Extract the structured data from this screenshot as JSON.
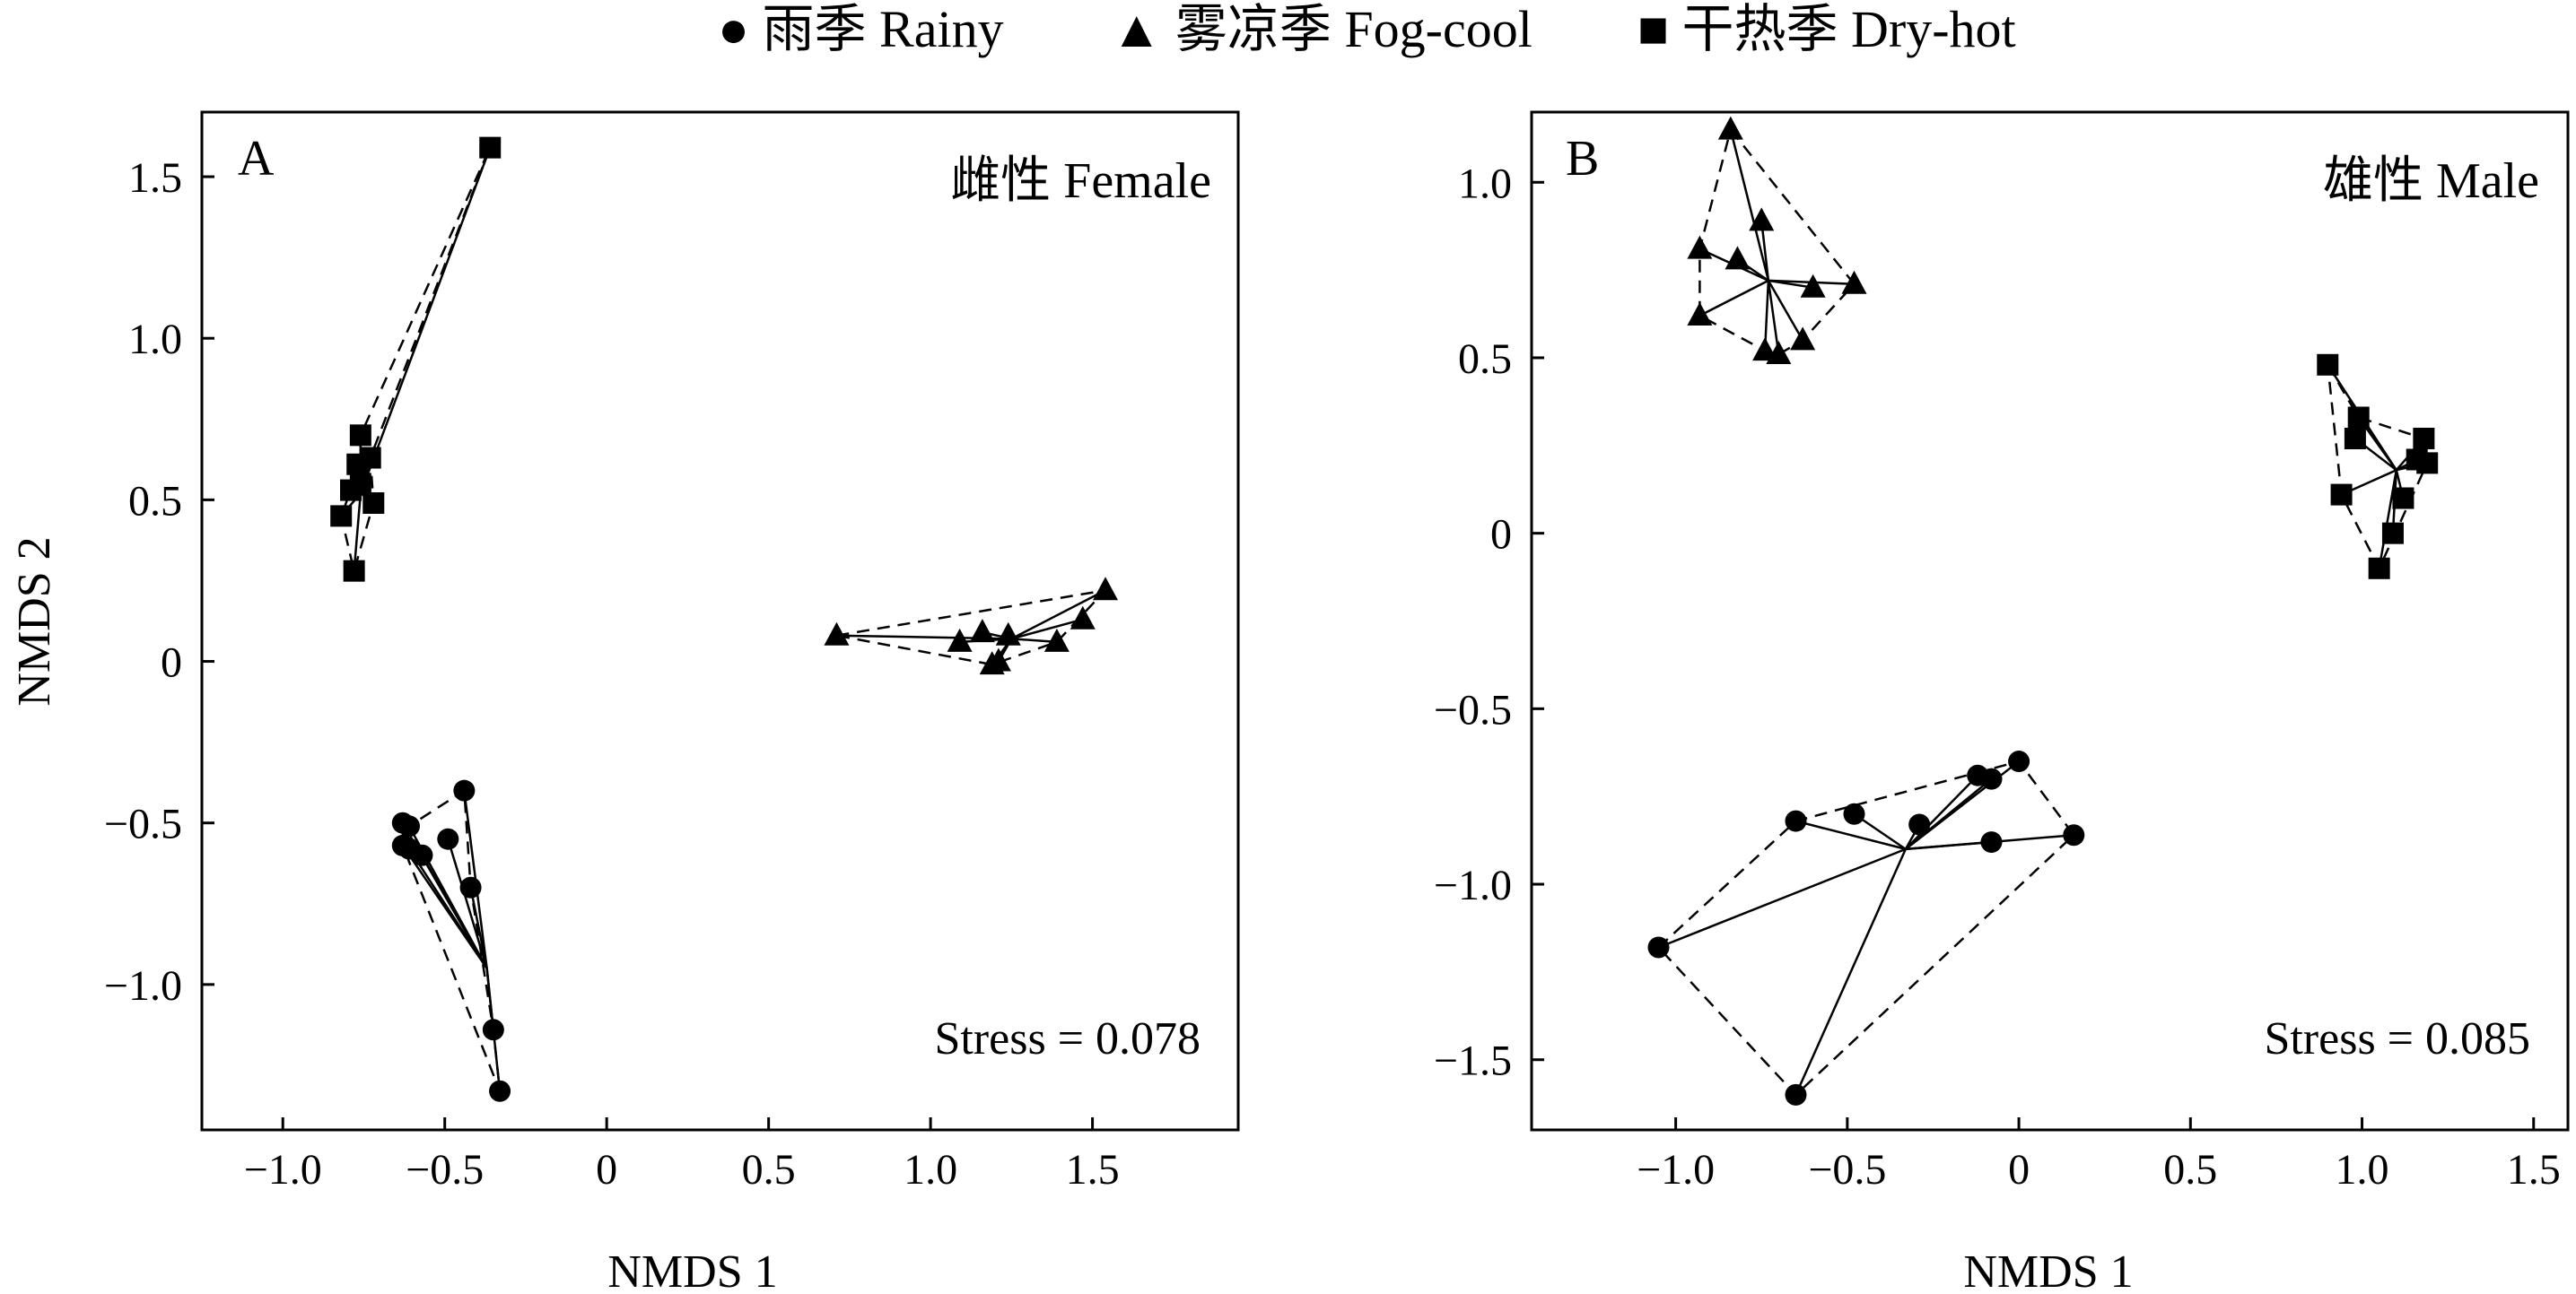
{
  "legend": {
    "items": [
      {
        "marker": "circle",
        "label": "● 雨季 Rainy"
      },
      {
        "marker": "triangle",
        "label": "▲ 雾凉季 Fog-cool"
      },
      {
        "marker": "square",
        "label": "■ 干热季 Dry-hot"
      }
    ]
  },
  "chart_data": [
    {
      "type": "scatter",
      "panel": "A",
      "title": "雌性 Female",
      "xlabel": "NMDS 1",
      "ylabel": "NMDS 2",
      "xlim": [
        -1.25,
        1.95
      ],
      "ylim": [
        -1.45,
        1.7
      ],
      "xticks": [
        -1.0,
        -0.5,
        0,
        0.5,
        1.0,
        1.5
      ],
      "xtick_labels": [
        "−1.0",
        "−0.5",
        "0",
        "0.5",
        "1.0",
        "1.5"
      ],
      "yticks": [
        -1.0,
        -0.5,
        0,
        0.5,
        1.0,
        1.5
      ],
      "ytick_labels": [
        "−1.0",
        "−0.5",
        "0",
        "0.5",
        "1.0",
        "1.5"
      ],
      "stress": "Stress = 0.078",
      "series": [
        {
          "season": "Rainy",
          "marker": "circle",
          "centroid": [
            -0.37,
            -0.95
          ],
          "points": [
            [
              -0.63,
              -0.5
            ],
            [
              -0.61,
              -0.51
            ],
            [
              -0.63,
              -0.57
            ],
            [
              -0.61,
              -0.58
            ],
            [
              -0.57,
              -0.6
            ],
            [
              -0.49,
              -0.55
            ],
            [
              -0.44,
              -0.4
            ],
            [
              -0.42,
              -0.7
            ],
            [
              -0.35,
              -1.14
            ],
            [
              -0.33,
              -1.33
            ]
          ],
          "hull": [
            [
              -0.63,
              -0.5
            ],
            [
              -0.61,
              -0.51
            ],
            [
              -0.44,
              -0.4
            ],
            [
              -0.42,
              -0.7
            ],
            [
              -0.35,
              -1.14
            ],
            [
              -0.33,
              -1.33
            ],
            [
              -0.63,
              -0.57
            ]
          ]
        },
        {
          "season": "Fog-cool",
          "marker": "triangle",
          "centroid": [
            1.25,
            0.07
          ],
          "points": [
            [
              0.71,
              0.08
            ],
            [
              1.09,
              0.06
            ],
            [
              1.16,
              0.09
            ],
            [
              1.19,
              -0.01
            ],
            [
              1.21,
              0.0
            ],
            [
              1.24,
              0.08
            ],
            [
              1.39,
              0.06
            ],
            [
              1.47,
              0.13
            ],
            [
              1.54,
              0.22
            ]
          ],
          "hull": [
            [
              0.71,
              0.08
            ],
            [
              1.54,
              0.22
            ],
            [
              1.39,
              0.06
            ],
            [
              1.19,
              -0.01
            ]
          ]
        },
        {
          "season": "Dry-hot",
          "marker": "square",
          "centroid": [
            -0.76,
            0.52
          ],
          "points": [
            [
              -0.36,
              1.59
            ],
            [
              -0.76,
              0.7
            ],
            [
              -0.77,
              0.61
            ],
            [
              -0.73,
              0.63
            ],
            [
              -0.79,
              0.53
            ],
            [
              -0.76,
              0.55
            ],
            [
              -0.72,
              0.49
            ],
            [
              -0.82,
              0.45
            ],
            [
              -0.78,
              0.28
            ]
          ],
          "hull": [
            [
              -0.36,
              1.59
            ],
            [
              -0.73,
              0.63
            ],
            [
              -0.72,
              0.49
            ],
            [
              -0.78,
              0.28
            ],
            [
              -0.82,
              0.45
            ],
            [
              -0.79,
              0.53
            ],
            [
              -0.77,
              0.61
            ],
            [
              -0.76,
              0.7
            ]
          ]
        }
      ]
    },
    {
      "type": "scatter",
      "panel": "B",
      "title": "雄性 Male",
      "xlabel": "NMDS 1",
      "ylabel": "",
      "xlim": [
        -1.42,
        1.6
      ],
      "ylim": [
        -1.7,
        1.2
      ],
      "xticks": [
        -1.0,
        -0.5,
        0,
        0.5,
        1.0,
        1.5
      ],
      "xtick_labels": [
        "−1.0",
        "−0.5",
        "0",
        "0.5",
        "1.0",
        "1.5"
      ],
      "yticks": [
        -1.5,
        -1.0,
        -0.5,
        0,
        0.5,
        1.0
      ],
      "ytick_labels": [
        "−1.5",
        "−1.0",
        "−0.5",
        "0",
        "0.5",
        "1.0"
      ],
      "stress": "Stress = 0.085",
      "series": [
        {
          "season": "Rainy",
          "marker": "circle",
          "centroid": [
            -0.33,
            -0.9
          ],
          "points": [
            [
              -1.05,
              -1.18
            ],
            [
              -0.65,
              -0.82
            ],
            [
              -0.65,
              -1.6
            ],
            [
              -0.48,
              -0.8
            ],
            [
              -0.29,
              -0.83
            ],
            [
              -0.12,
              -0.69
            ],
            [
              -0.08,
              -0.7
            ],
            [
              -0.08,
              -0.88
            ],
            [
              0.0,
              -0.65
            ],
            [
              0.16,
              -0.86
            ]
          ],
          "hull": [
            [
              -1.05,
              -1.18
            ],
            [
              -0.65,
              -0.82
            ],
            [
              0.0,
              -0.65
            ],
            [
              0.16,
              -0.86
            ],
            [
              -0.65,
              -1.6
            ]
          ]
        },
        {
          "season": "Fog-cool",
          "marker": "triangle",
          "centroid": [
            -0.73,
            0.72
          ],
          "points": [
            [
              -0.84,
              1.15
            ],
            [
              -0.93,
              0.81
            ],
            [
              -0.82,
              0.78
            ],
            [
              -0.75,
              0.89
            ],
            [
              -0.93,
              0.62
            ],
            [
              -0.6,
              0.7
            ],
            [
              -0.48,
              0.71
            ],
            [
              -0.74,
              0.52
            ],
            [
              -0.7,
              0.51
            ],
            [
              -0.63,
              0.55
            ]
          ],
          "hull": [
            [
              -0.84,
              1.15
            ],
            [
              -0.48,
              0.71
            ],
            [
              -0.63,
              0.55
            ],
            [
              -0.7,
              0.51
            ],
            [
              -0.74,
              0.52
            ],
            [
              -0.93,
              0.62
            ],
            [
              -0.93,
              0.81
            ]
          ]
        },
        {
          "season": "Dry-hot",
          "marker": "square",
          "centroid": [
            1.1,
            0.18
          ],
          "points": [
            [
              0.9,
              0.48
            ],
            [
              0.98,
              0.27
            ],
            [
              0.99,
              0.33
            ],
            [
              1.18,
              0.27
            ],
            [
              1.16,
              0.21
            ],
            [
              1.19,
              0.2
            ],
            [
              1.12,
              0.1
            ],
            [
              0.94,
              0.11
            ],
            [
              1.09,
              0.0
            ],
            [
              1.05,
              -0.1
            ]
          ],
          "hull": [
            [
              0.9,
              0.48
            ],
            [
              0.99,
              0.33
            ],
            [
              1.18,
              0.27
            ],
            [
              1.19,
              0.2
            ],
            [
              1.05,
              -0.1
            ],
            [
              0.94,
              0.11
            ]
          ]
        }
      ]
    }
  ]
}
